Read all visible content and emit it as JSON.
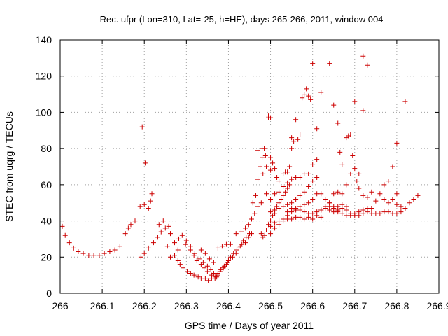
{
  "chart_data": {
    "type": "scatter",
    "title": "Rec. ufpr (Lon=310, Lat=-25, h=HE), days 265-266, 2011, window 004",
    "xlabel": "GPS time / Days of year 2011",
    "ylabel": "STEC from uqrg / TECUs",
    "xlim": [
      266,
      266.9
    ],
    "ylim": [
      0,
      140
    ],
    "x_ticks": [
      266,
      266.1,
      266.2,
      266.3,
      266.4,
      266.5,
      266.6,
      266.7,
      266.8,
      266.9
    ],
    "x_tick_labels": [
      "266",
      "266.1",
      "266.2",
      "266.3",
      "266.4",
      "266.5",
      "266.6",
      "266.7",
      "266.8",
      "266.9"
    ],
    "y_ticks": [
      0,
      20,
      40,
      60,
      80,
      100,
      120,
      140
    ],
    "y_tick_labels": [
      "0",
      "20",
      "40",
      "60",
      "80",
      "100",
      "120",
      "140"
    ],
    "grid": true,
    "marker": "plus",
    "color": "#cc0000",
    "points": [
      [
        266.005,
        37
      ],
      [
        266.012,
        32
      ],
      [
        266.022,
        28
      ],
      [
        266.032,
        25
      ],
      [
        266.043,
        23
      ],
      [
        266.055,
        22
      ],
      [
        266.068,
        21
      ],
      [
        266.08,
        21
      ],
      [
        266.093,
        21
      ],
      [
        266.105,
        22
      ],
      [
        266.118,
        23
      ],
      [
        266.13,
        24
      ],
      [
        266.142,
        26
      ],
      [
        266.155,
        33
      ],
      [
        266.162,
        36
      ],
      [
        266.168,
        38
      ],
      [
        266.178,
        40
      ],
      [
        266.19,
        48
      ],
      [
        266.2,
        49
      ],
      [
        266.21,
        47
      ],
      [
        266.215,
        51
      ],
      [
        266.218,
        55
      ],
      [
        266.202,
        72
      ],
      [
        266.195,
        92
      ],
      [
        266.192,
        20
      ],
      [
        266.2,
        22
      ],
      [
        266.21,
        25
      ],
      [
        266.222,
        28
      ],
      [
        266.232,
        31
      ],
      [
        266.24,
        34
      ],
      [
        266.25,
        36
      ],
      [
        266.258,
        37
      ],
      [
        266.235,
        38
      ],
      [
        266.245,
        40
      ],
      [
        266.255,
        26
      ],
      [
        266.262,
        20
      ],
      [
        266.272,
        21
      ],
      [
        266.28,
        24
      ],
      [
        266.262,
        33
      ],
      [
        266.28,
        18
      ],
      [
        266.285,
        16
      ],
      [
        266.292,
        14
      ],
      [
        266.302,
        12
      ],
      [
        266.31,
        11
      ],
      [
        266.318,
        10
      ],
      [
        266.328,
        9
      ],
      [
        266.335,
        8
      ],
      [
        266.345,
        8
      ],
      [
        266.352,
        7
      ],
      [
        266.36,
        8
      ],
      [
        266.368,
        9
      ],
      [
        266.375,
        10
      ],
      [
        266.38,
        12
      ],
      [
        266.388,
        14
      ],
      [
        266.395,
        16
      ],
      [
        266.4,
        18
      ],
      [
        266.41,
        20
      ],
      [
        266.418,
        22
      ],
      [
        266.425,
        25
      ],
      [
        266.432,
        27
      ],
      [
        266.44,
        28
      ],
      [
        266.448,
        31
      ],
      [
        266.455,
        33
      ],
      [
        266.272,
        28
      ],
      [
        266.282,
        30
      ],
      [
        266.29,
        32
      ],
      [
        266.298,
        27
      ],
      [
        266.31,
        24
      ],
      [
        266.318,
        21
      ],
      [
        266.325,
        18
      ],
      [
        266.335,
        16
      ],
      [
        266.342,
        14
      ],
      [
        266.35,
        12
      ],
      [
        266.36,
        10
      ],
      [
        266.368,
        8
      ],
      [
        266.375,
        11
      ],
      [
        266.382,
        13
      ],
      [
        266.39,
        15
      ],
      [
        266.398,
        17
      ],
      [
        266.405,
        20
      ],
      [
        266.412,
        22
      ],
      [
        266.42,
        24
      ],
      [
        266.428,
        26
      ],
      [
        266.435,
        29
      ],
      [
        266.442,
        31
      ],
      [
        266.45,
        33
      ],
      [
        266.3,
        29
      ],
      [
        266.31,
        26
      ],
      [
        266.32,
        22
      ],
      [
        266.33,
        19
      ],
      [
        266.34,
        17
      ],
      [
        266.35,
        15
      ],
      [
        266.358,
        13
      ],
      [
        266.365,
        11
      ],
      [
        266.372,
        9
      ],
      [
        266.335,
        24
      ],
      [
        266.345,
        22
      ],
      [
        266.355,
        19
      ],
      [
        266.365,
        17
      ],
      [
        266.375,
        25
      ],
      [
        266.385,
        26
      ],
      [
        266.395,
        27
      ],
      [
        266.405,
        27
      ],
      [
        266.418,
        33
      ],
      [
        266.43,
        34
      ],
      [
        266.44,
        36
      ],
      [
        266.448,
        38
      ],
      [
        266.455,
        41
      ],
      [
        266.462,
        44
      ],
      [
        266.47,
        48
      ],
      [
        266.478,
        50
      ],
      [
        266.458,
        50
      ],
      [
        266.465,
        54
      ],
      [
        266.47,
        63
      ],
      [
        266.475,
        70
      ],
      [
        266.48,
        75
      ],
      [
        266.47,
        79
      ],
      [
        266.48,
        80
      ],
      [
        266.485,
        80
      ],
      [
        266.488,
        76
      ],
      [
        266.49,
        70
      ],
      [
        266.482,
        66
      ],
      [
        266.478,
        33
      ],
      [
        266.482,
        31
      ],
      [
        266.486,
        32
      ],
      [
        266.49,
        35
      ],
      [
        266.495,
        38
      ],
      [
        266.5,
        40
      ],
      [
        266.505,
        43
      ],
      [
        266.51,
        46
      ],
      [
        266.515,
        48
      ],
      [
        266.52,
        50
      ],
      [
        266.525,
        52
      ],
      [
        266.53,
        54
      ],
      [
        266.535,
        56
      ],
      [
        266.54,
        58
      ],
      [
        266.545,
        60
      ],
      [
        266.495,
        97
      ],
      [
        266.495,
        98
      ],
      [
        266.5,
        97
      ],
      [
        266.5,
        75
      ],
      [
        266.505,
        72
      ],
      [
        266.5,
        68
      ],
      [
        266.51,
        69
      ],
      [
        266.515,
        64
      ],
      [
        266.52,
        62
      ],
      [
        266.53,
        66
      ],
      [
        266.535,
        67
      ],
      [
        266.54,
        67
      ],
      [
        266.545,
        70
      ],
      [
        266.55,
        80
      ],
      [
        266.55,
        86
      ],
      [
        266.555,
        84
      ],
      [
        266.56,
        96
      ],
      [
        266.565,
        85
      ],
      [
        266.57,
        88
      ],
      [
        266.575,
        108
      ],
      [
        266.58,
        110
      ],
      [
        266.585,
        113
      ],
      [
        266.59,
        109
      ],
      [
        266.595,
        107
      ],
      [
        266.6,
        127
      ],
      [
        266.61,
        91
      ],
      [
        266.49,
        55
      ],
      [
        266.5,
        52
      ],
      [
        266.51,
        55
      ],
      [
        266.52,
        56
      ],
      [
        266.53,
        59
      ],
      [
        266.54,
        61
      ],
      [
        266.55,
        63
      ],
      [
        266.56,
        64
      ],
      [
        266.57,
        64
      ],
      [
        266.58,
        66
      ],
      [
        266.59,
        66
      ],
      [
        266.6,
        71
      ],
      [
        266.61,
        74
      ],
      [
        266.5,
        45
      ],
      [
        266.51,
        44
      ],
      [
        266.52,
        47
      ],
      [
        266.53,
        48
      ],
      [
        266.54,
        49
      ],
      [
        266.55,
        50
      ],
      [
        266.56,
        52
      ],
      [
        266.57,
        54
      ],
      [
        266.58,
        56
      ],
      [
        266.59,
        59
      ],
      [
        266.6,
        62
      ],
      [
        266.61,
        64
      ],
      [
        266.5,
        37
      ],
      [
        266.51,
        39
      ],
      [
        266.52,
        40
      ],
      [
        266.53,
        41
      ],
      [
        266.54,
        43
      ],
      [
        266.55,
        45
      ],
      [
        266.56,
        46
      ],
      [
        266.57,
        48
      ],
      [
        266.58,
        49
      ],
      [
        266.59,
        50
      ],
      [
        266.6,
        52
      ],
      [
        266.61,
        55
      ],
      [
        266.5,
        33
      ],
      [
        266.51,
        36
      ],
      [
        266.52,
        38
      ],
      [
        266.53,
        40
      ],
      [
        266.54,
        41
      ],
      [
        266.55,
        41
      ],
      [
        266.56,
        42
      ],
      [
        266.57,
        42
      ],
      [
        266.58,
        41
      ],
      [
        266.59,
        42
      ],
      [
        266.6,
        41
      ],
      [
        266.61,
        43
      ],
      [
        266.62,
        42
      ],
      [
        266.54,
        45
      ],
      [
        266.55,
        47
      ],
      [
        266.56,
        47
      ],
      [
        266.57,
        46
      ],
      [
        266.58,
        45
      ],
      [
        266.59,
        44
      ],
      [
        266.6,
        44
      ],
      [
        266.61,
        45
      ],
      [
        266.62,
        46
      ],
      [
        266.63,
        47
      ],
      [
        266.64,
        48
      ],
      [
        266.65,
        47
      ],
      [
        266.66,
        48
      ],
      [
        266.67,
        49
      ],
      [
        266.68,
        48
      ],
      [
        266.62,
        111
      ],
      [
        266.64,
        127
      ],
      [
        266.65,
        104
      ],
      [
        266.66,
        94
      ],
      [
        266.665,
        78
      ],
      [
        266.67,
        71
      ],
      [
        266.68,
        86
      ],
      [
        266.685,
        87
      ],
      [
        266.69,
        88
      ],
      [
        266.695,
        76
      ],
      [
        266.7,
        106
      ],
      [
        266.705,
        62
      ],
      [
        266.71,
        66
      ],
      [
        266.72,
        131
      ],
      [
        266.72,
        101
      ],
      [
        266.73,
        126
      ],
      [
        266.62,
        55
      ],
      [
        266.63,
        52
      ],
      [
        266.64,
        50
      ],
      [
        266.65,
        55
      ],
      [
        266.66,
        56
      ],
      [
        266.67,
        55
      ],
      [
        266.68,
        60
      ],
      [
        266.69,
        66
      ],
      [
        266.7,
        69
      ],
      [
        266.71,
        58
      ],
      [
        266.72,
        54
      ],
      [
        266.73,
        53
      ],
      [
        266.74,
        56
      ],
      [
        266.75,
        51
      ],
      [
        266.76,
        55
      ],
      [
        266.77,
        52
      ],
      [
        266.78,
        50
      ],
      [
        266.79,
        52
      ],
      [
        266.8,
        55
      ],
      [
        266.64,
        46
      ],
      [
        266.65,
        45
      ],
      [
        266.66,
        46
      ],
      [
        266.67,
        47
      ],
      [
        266.68,
        46
      ],
      [
        266.69,
        44
      ],
      [
        266.7,
        43
      ],
      [
        266.71,
        43
      ],
      [
        266.72,
        44
      ],
      [
        266.73,
        45
      ],
      [
        266.74,
        44
      ],
      [
        266.75,
        44
      ],
      [
        266.76,
        44
      ],
      [
        266.77,
        45
      ],
      [
        266.78,
        45
      ],
      [
        266.79,
        44
      ],
      [
        266.8,
        44
      ],
      [
        266.81,
        45
      ],
      [
        266.82,
        47
      ],
      [
        266.83,
        50
      ],
      [
        266.84,
        52
      ],
      [
        266.85,
        54
      ],
      [
        266.62,
        46
      ],
      [
        266.63,
        48
      ],
      [
        266.64,
        50
      ],
      [
        266.65,
        48
      ],
      [
        266.66,
        45
      ],
      [
        266.67,
        44
      ],
      [
        266.68,
        43
      ],
      [
        266.69,
        43
      ],
      [
        266.7,
        44
      ],
      [
        266.71,
        45
      ],
      [
        266.72,
        46
      ],
      [
        266.73,
        47
      ],
      [
        266.74,
        47
      ],
      [
        266.77,
        60
      ],
      [
        266.78,
        62
      ],
      [
        266.79,
        70
      ],
      [
        266.8,
        83
      ],
      [
        266.82,
        106
      ],
      [
        266.8,
        49
      ],
      [
        266.81,
        48
      ]
    ]
  }
}
